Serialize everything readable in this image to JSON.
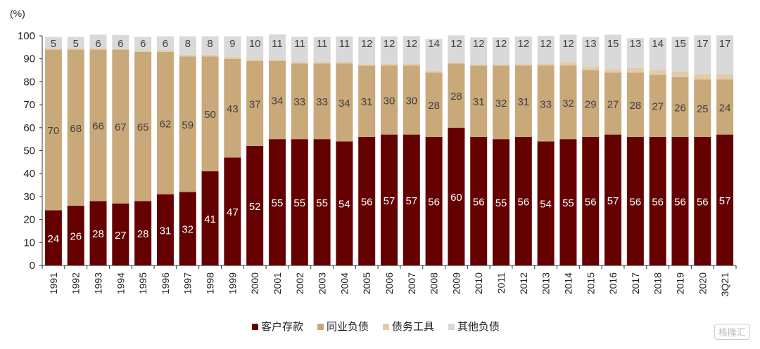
{
  "chart_data": {
    "type": "bar",
    "stacked": true,
    "unit_label": "(%)",
    "ylim": [
      0,
      100
    ],
    "yticks": [
      0,
      10,
      20,
      30,
      40,
      50,
      60,
      70,
      80,
      90,
      100
    ],
    "grid": false,
    "legend_position": "bottom",
    "categories": [
      "1991",
      "1992",
      "1993",
      "1994",
      "1995",
      "1996",
      "1997",
      "1998",
      "1999",
      "2000",
      "2001",
      "2002",
      "2003",
      "2004",
      "2005",
      "2006",
      "2007",
      "2008",
      "2009",
      "2010",
      "2011",
      "2012",
      "2013",
      "2014",
      "2015",
      "2016",
      "2017",
      "2018",
      "2019",
      "2020",
      "3Q21"
    ],
    "series": [
      {
        "name": "客户存款",
        "color": "#640000",
        "label_color": "#ffffff",
        "labeled": true,
        "values": [
          24,
          26,
          28,
          27,
          28,
          31,
          32,
          41,
          47,
          52,
          55,
          55,
          55,
          54,
          56,
          57,
          57,
          56,
          60,
          56,
          55,
          56,
          54,
          55,
          56,
          57,
          56,
          56,
          56,
          56,
          57
        ]
      },
      {
        "name": "同业负债",
        "color": "#c9a87a",
        "label_color": "#404040",
        "labeled": true,
        "values": [
          70,
          68,
          66,
          67,
          65,
          62,
          59,
          50,
          43,
          37,
          34,
          33,
          33,
          34,
          31,
          30,
          30,
          28,
          28,
          31,
          32,
          31,
          33,
          32,
          29,
          27,
          28,
          27,
          26,
          25,
          24
        ]
      },
      {
        "name": "债务工具",
        "color": "#e3cba8",
        "label_color": "#404040",
        "labeled": false,
        "values": [
          0.5,
          0.5,
          0.5,
          0.3,
          0.5,
          0.8,
          0.8,
          0.8,
          0.8,
          0.8,
          0.6,
          0.6,
          0.5,
          0.7,
          0.5,
          0.8,
          0.9,
          0.7,
          0.2,
          0.3,
          0.3,
          0.7,
          1,
          1.5,
          1.5,
          1.5,
          2,
          2.2,
          2.5,
          2.2,
          2.2
        ]
      },
      {
        "name": "其他负债",
        "color": "#d9d9d9",
        "label_color": "#404040",
        "labeled": true,
        "values": [
          5,
          5,
          6,
          6,
          6,
          6,
          8,
          8,
          9,
          10,
          11,
          11,
          11,
          11,
          12,
          12,
          12,
          14,
          12,
          12,
          12,
          12,
          12,
          12,
          13,
          15,
          13,
          14,
          15,
          17,
          17
        ]
      }
    ]
  },
  "watermark": "格隆汇"
}
